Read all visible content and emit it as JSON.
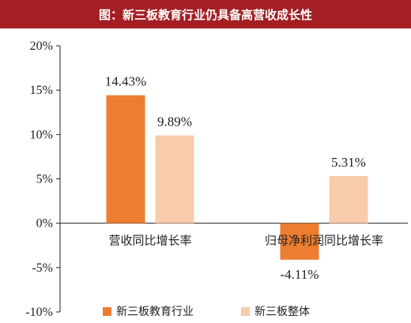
{
  "title": "图：新三板教育行业仍具备高营收成长性",
  "chart_data": {
    "type": "bar",
    "categories": [
      "营收同比增长率",
      "归母净利润同比增长率"
    ],
    "series": [
      {
        "name": "新三板教育行业",
        "values": [
          14.43,
          -4.11
        ],
        "labels": [
          "14.43%",
          "-4.11%"
        ],
        "color": "#ed7d31"
      },
      {
        "name": "新三板整体",
        "values": [
          9.89,
          5.31
        ],
        "labels": [
          "9.89%",
          "5.31%"
        ],
        "color": "#f8cbad"
      }
    ],
    "ylim": [
      -10,
      20
    ],
    "yticks": [
      20,
      15,
      10,
      5,
      0,
      -5,
      -10
    ],
    "ytick_labels": [
      "20%",
      "15%",
      "10%",
      "5%",
      "0%",
      "-5%",
      "-10%"
    ],
    "legend_position": "bottom"
  }
}
